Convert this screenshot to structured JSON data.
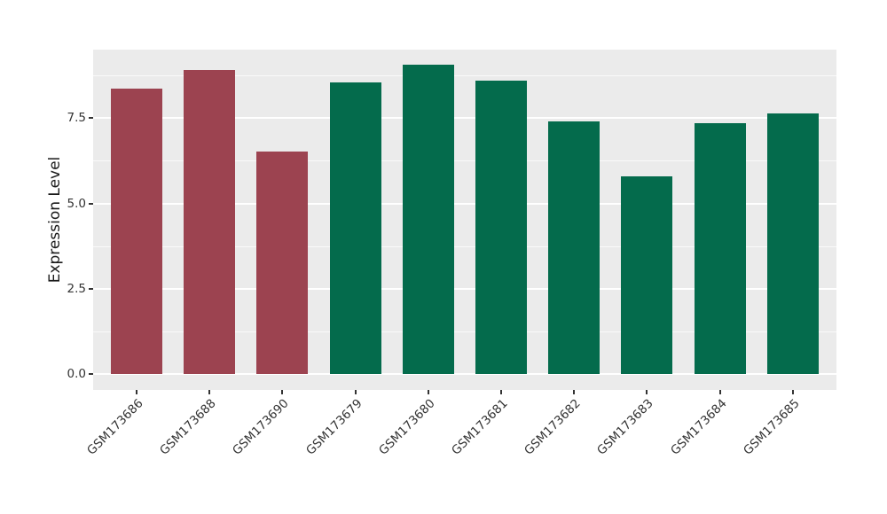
{
  "chart_data": {
    "type": "bar",
    "title": "",
    "ylabel": "Expression Level",
    "xlabel": "",
    "categories": [
      "GSM173686",
      "GSM173688",
      "GSM173690",
      "GSM173679",
      "GSM173680",
      "GSM173681",
      "GSM173682",
      "GSM173683",
      "GSM173684",
      "GSM173685"
    ],
    "values": [
      8.37,
      8.91,
      6.51,
      8.54,
      9.06,
      8.6,
      7.39,
      5.79,
      7.35,
      7.64
    ],
    "bar_colors": [
      "#9C4350",
      "#9C4350",
      "#9C4350",
      "#046B4C",
      "#046B4C",
      "#046B4C",
      "#046B4C",
      "#046B4C",
      "#046B4C",
      "#046B4C"
    ],
    "palette": {
      "maroon": "#9C4350",
      "green": "#046B4C"
    },
    "yticks": [
      0,
      2.5,
      5,
      7.5
    ],
    "ytick_labels": [
      "0.0",
      "2.5",
      "5.0",
      "7.5"
    ],
    "minor_gridlines": [
      1.25,
      3.75,
      6.25,
      8.75
    ],
    "ylim": [
      -0.45,
      9.52
    ],
    "legend_position": "none",
    "panel_background": "#EBEBEB",
    "gridline_color": "#FFFFFF",
    "axis_tick_color": "#333333"
  }
}
